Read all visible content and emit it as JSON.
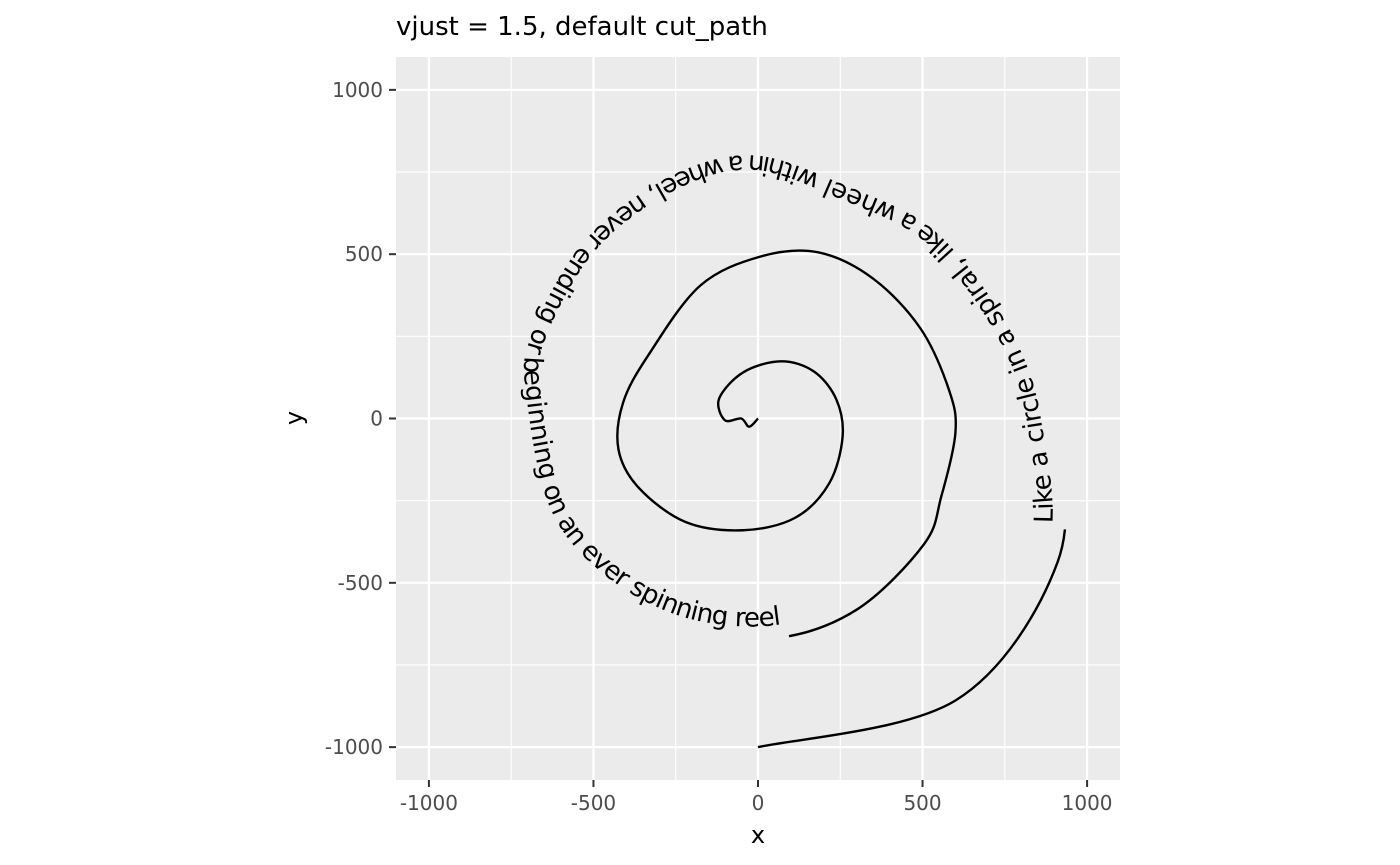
{
  "chart_data": {
    "type": "line",
    "title": "vjust = 1.5, default cut_path",
    "xlabel": "x",
    "ylabel": "y",
    "xlim": [
      -1100,
      1100
    ],
    "ylim": [
      -1100,
      1100
    ],
    "x_ticks": [
      -1000,
      -500,
      0,
      500,
      1000
    ],
    "y_ticks": [
      -1000,
      -500,
      0,
      500,
      1000
    ],
    "x_tick_labels": [
      "-1000",
      "-500",
      "0",
      "500",
      "1000"
    ],
    "y_tick_labels": [
      "-1000",
      "-500",
      "0",
      "500",
      "1000"
    ],
    "minor_gridlines": [
      -750,
      -250,
      250,
      750
    ],
    "grid": true,
    "aspect_ratio": "equal",
    "panel_background": "#ebebeb",
    "gridline_color": "#ffffff",
    "series": [
      {
        "label_text": "Like a circle in a spiral, like a wheel within a wheel, never ending or beginning on an ever spinning reel",
        "line_color": "#000000",
        "x": [
          0,
          600,
          910,
          905,
          810,
          572,
          277,
          -14,
          -288,
          -557,
          -729,
          -741,
          -665,
          -488,
          -231,
          57,
          301,
          504,
          557,
          600,
          580,
          493,
          348,
          181,
          8,
          -176,
          -333,
          -410,
          -424,
          -363,
          -220,
          -45,
          113,
          216,
          257,
          238,
          170,
          70,
          -44,
          -118,
          -101,
          -51,
          -27,
          0
        ],
        "y": [
          -1000,
          -858,
          -438,
          -36,
          271,
          592,
          747,
          840,
          770,
          566,
          258,
          50,
          -294,
          -509,
          -644,
          -668,
          -581,
          -383,
          -237,
          -42,
          88,
          275,
          427,
          506,
          493,
          404,
          193,
          48,
          -94,
          -210,
          -315,
          -340,
          -302,
          -198,
          -56,
          58,
          143,
          174,
          141,
          61,
          -5,
          0,
          -25,
          0
        ]
      }
    ]
  }
}
